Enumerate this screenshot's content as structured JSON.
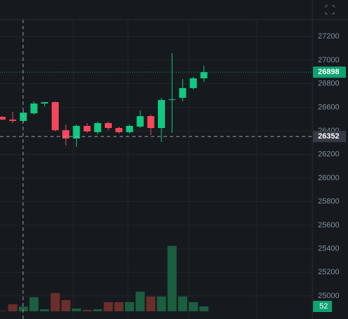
{
  "chart_data": {
    "type": "candlestick",
    "open": [
      26519,
      26496,
      26484,
      26549,
      26632,
      26644,
      26406,
      26335,
      26442,
      26389,
      26466,
      26424,
      26389,
      26436,
      26525,
      26424,
      26662,
      26680,
      26763,
      26846
    ],
    "high": [
      26525,
      26561,
      26573,
      26650,
      26644,
      26650,
      26454,
      26454,
      26466,
      26478,
      26478,
      26436,
      26454,
      26573,
      26537,
      26680,
      27059,
      26840,
      26858,
      26953
    ],
    "low": [
      26490,
      26466,
      26472,
      26537,
      26608,
      26395,
      26276,
      26264,
      26383,
      26371,
      26406,
      26377,
      26377,
      26424,
      26365,
      26306,
      26383,
      26650,
      26751,
      26816
    ],
    "close": [
      26496,
      26484,
      26555,
      26632,
      26644,
      26406,
      26335,
      26442,
      26395,
      26466,
      26424,
      26389,
      26442,
      26525,
      26424,
      26662,
      26668,
      26763,
      26846,
      26898
    ],
    "volume": [
      5,
      75,
      50,
      150,
      22,
      195,
      120,
      30,
      15,
      22,
      98,
      98,
      98,
      210,
      158,
      158,
      698,
      158,
      98,
      52
    ],
    "up_color": "#0ecb81",
    "down_color": "#f6465d",
    "up_volume_color": "#1b5e40",
    "down_volume_color": "#6a2e2b",
    "ylim": [
      24804,
      27344
    ],
    "yticks": [
      25000,
      25200,
      25400,
      25600,
      25800,
      26000,
      26200,
      26400,
      26600,
      26800,
      27000,
      27200
    ],
    "grid": true,
    "crosshair_price": 26352
  }
}
